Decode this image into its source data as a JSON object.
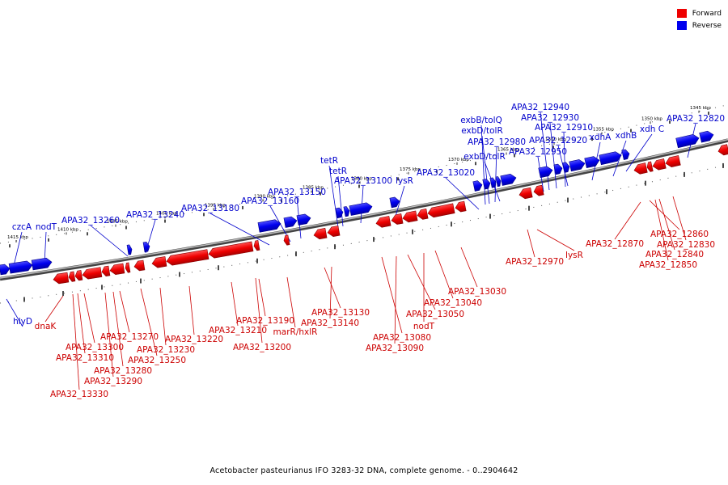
{
  "legend": {
    "forward_label": "Forward",
    "reverse_label": "Reverse",
    "forward_color": "#ee0000",
    "reverse_color": "#0000ee"
  },
  "caption": "Acetobacter pasteurianus IFO 3283-32 DNA, complete genome. - 0..2904642",
  "scale_ticks": [
    "1415 kbp",
    "1410 kbp",
    "1405 kbp",
    "1400 kbp",
    "1395 kbp",
    "1390 kbp",
    "1385 kbp",
    "1380 kbp",
    "1375 kbp",
    "1370 kbp",
    "1365 kbp",
    "1360 kbp",
    "1355 kbp",
    "1350 kbp",
    "1345 kbp"
  ],
  "reverse_genes": [
    "czcA",
    "nodT",
    "APA32_13260",
    "APA32_13240",
    "APA32_13180",
    "APA32_13160",
    "APA32_13150",
    "tetR",
    "tetR",
    "APA32_13100",
    "lysR",
    "APA32_13020",
    "exbB/tolQ",
    "exbD/tolR",
    "APA32_12980",
    "exbD/tolR",
    "APA32_12940",
    "APA32_12930",
    "APA32_12910",
    "APA32_12920",
    "APA32_12950",
    "xdhA",
    "xdhB",
    "xdh C",
    "APA32_12820",
    "hlyD"
  ],
  "forward_genes": [
    "dnaK",
    "APA32_13330",
    "APA32_13310",
    "APA32_13300",
    "APA32_13290",
    "APA32_13280",
    "APA32_13270",
    "APA32_13250",
    "APA32_13230",
    "APA32_13220",
    "APA32_13210",
    "APA32_13200",
    "APA32_13190",
    "marR/hxlR",
    "APA32_13140",
    "APA32_13130",
    "APA32_13080",
    "APA32_13090",
    "APA32_13050",
    "nodT",
    "APA32_13040",
    "APA32_13030",
    "APA32_12970",
    "lysR",
    "APA32_12870",
    "APA32_12860",
    "APA32_12850",
    "APA32_12840",
    "APA32_12830"
  ]
}
